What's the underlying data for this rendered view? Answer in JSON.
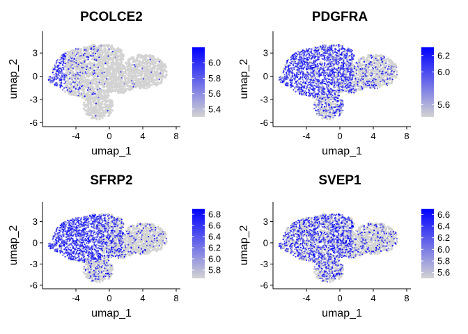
{
  "chart_data": [
    {
      "type": "scatter",
      "title": "PCOLCE2",
      "xlabel": "umap_1",
      "ylabel": "umap_2",
      "xlim": [
        -8,
        8.5
      ],
      "ylim": [
        -6.5,
        5.8
      ],
      "xticks": [
        "-4",
        "0",
        "4",
        "8"
      ],
      "yticks": [
        "-6",
        "-3",
        "0",
        "3"
      ],
      "colorbar": {
        "min": 5.3,
        "max": 6.2,
        "ticks": [
          "5.4",
          "5.6",
          "5.8",
          "6.0"
        ],
        "low_color": "#d3d3d3",
        "high_color": "#0000ff"
      },
      "expression": {
        "left_cluster": 0.15,
        "center": 0.03,
        "right": 0.02,
        "spot": "left_tip"
      }
    },
    {
      "type": "scatter",
      "title": "PDGFRA",
      "xlabel": "umap_1",
      "ylabel": "umap_2",
      "xlim": [
        -8,
        8.5
      ],
      "ylim": [
        -6.5,
        5.8
      ],
      "xticks": [
        "-4",
        "0",
        "4",
        "8"
      ],
      "yticks": [
        "-6",
        "-3",
        "0",
        "3"
      ],
      "colorbar": {
        "min": 5.45,
        "max": 6.3,
        "ticks": [
          "5.6",
          "6.0",
          "6.2"
        ],
        "low_color": "#d3d3d3",
        "high_color": "#0000ff"
      },
      "expression": {
        "left_cluster": 0.8,
        "center": 0.7,
        "right": 0.25,
        "spot": "none"
      }
    },
    {
      "type": "scatter",
      "title": "SFRP2",
      "xlabel": "umap_1",
      "ylabel": "umap_2",
      "xlim": [
        -8,
        8.5
      ],
      "ylim": [
        -6.5,
        5.8
      ],
      "xticks": [
        "-4",
        "0",
        "4",
        "8"
      ],
      "yticks": [
        "-6",
        "-3",
        "0",
        "3"
      ],
      "colorbar": {
        "min": 5.65,
        "max": 6.9,
        "ticks": [
          "5.8",
          "6.0",
          "6.2",
          "6.4",
          "6.6",
          "6.8"
        ],
        "low_color": "#d3d3d3",
        "high_color": "#0000ff"
      },
      "expression": {
        "left_cluster": 0.9,
        "center": 0.45,
        "right": 0.12,
        "spot": "none"
      }
    },
    {
      "type": "scatter",
      "title": "SVEP1",
      "xlabel": "umap_1",
      "ylabel": "umap_2",
      "xlim": [
        -8,
        8.5
      ],
      "ylim": [
        -6.5,
        5.8
      ],
      "xticks": [
        "-4",
        "0",
        "4",
        "8"
      ],
      "yticks": [
        "-6",
        "-3",
        "0",
        "3"
      ],
      "colorbar": {
        "min": 5.5,
        "max": 6.7,
        "ticks": [
          "5.6",
          "5.8",
          "6.0",
          "6.2",
          "6.4",
          "6.6"
        ],
        "low_color": "#d3d3d3",
        "high_color": "#0000ff"
      },
      "expression": {
        "left_cluster": 0.55,
        "center": 0.6,
        "right": 0.2,
        "spot": "none"
      }
    }
  ]
}
